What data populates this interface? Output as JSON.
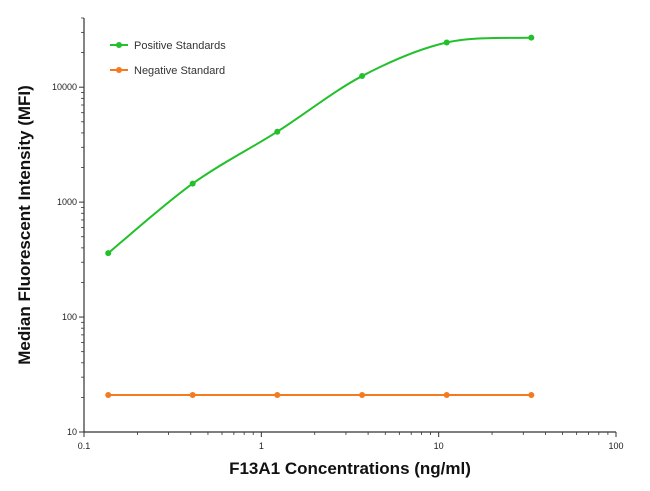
{
  "chart_data": {
    "type": "line",
    "title": "",
    "xlabel": "F13A1 Concentrations (ng/ml)",
    "ylabel": "Median  Fluorescent Intensity  (MFI)",
    "x_scale": "log",
    "y_scale": "log",
    "xlim": [
      0.1,
      100
    ],
    "ylim": [
      10,
      40000
    ],
    "x_ticks": [
      "0.1",
      "1",
      "10",
      "100"
    ],
    "y_ticks": [
      "10",
      "100",
      "1000",
      "10000"
    ],
    "grid": false,
    "legend_position": "top-left",
    "series": [
      {
        "name": "Positive Standards",
        "color": "#22c02a",
        "marker": "circle",
        "x": [
          0.137,
          0.41,
          1.23,
          3.7,
          11.1,
          33.3
        ],
        "y": [
          360,
          1450,
          4100,
          12500,
          24500,
          27000
        ]
      },
      {
        "name": "Negative Standard",
        "color": "#f47a1f",
        "marker": "circle",
        "x": [
          0.137,
          0.41,
          1.23,
          3.7,
          11.1,
          33.3
        ],
        "y": [
          21,
          21,
          21,
          21,
          21,
          21
        ]
      }
    ]
  }
}
